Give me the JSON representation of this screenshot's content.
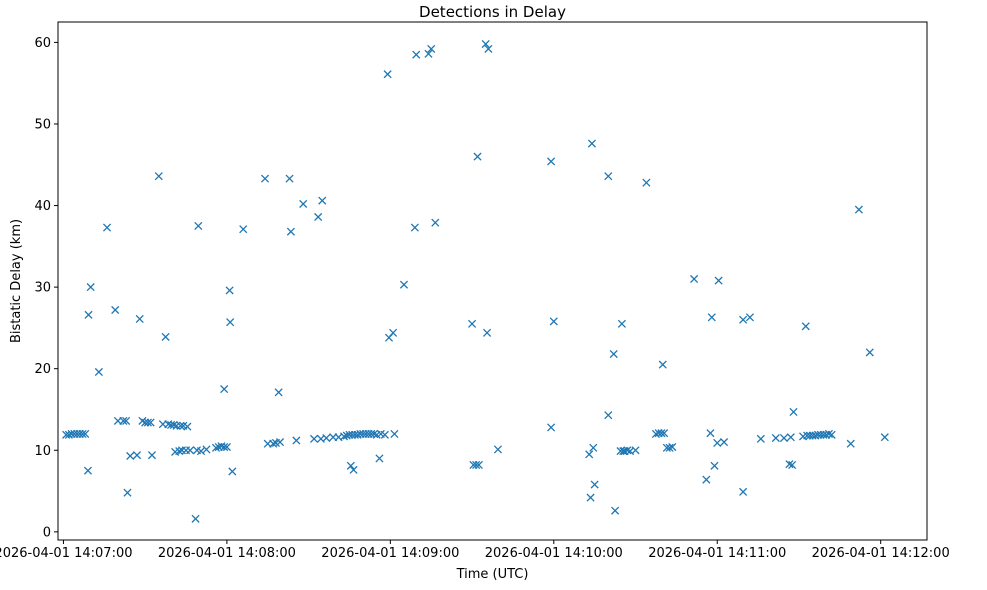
{
  "chart_data": {
    "type": "scatter",
    "title": "Detections in Delay",
    "xlabel": "Time (UTC)",
    "ylabel": "Bistatic Delay (km)",
    "x_unit": "seconds since 2026-04-01 14:07:00",
    "xlim": [
      -2,
      317
    ],
    "ylim": [
      -1,
      62.5
    ],
    "xticks": [
      {
        "value": 0,
        "label": "2026-04-01 14:07:00"
      },
      {
        "value": 60,
        "label": "2026-04-01 14:08:00"
      },
      {
        "value": 120,
        "label": "2026-04-01 14:09:00"
      },
      {
        "value": 180,
        "label": "2026-04-01 14:10:00"
      },
      {
        "value": 240,
        "label": "2026-04-01 14:11:00"
      },
      {
        "value": 300,
        "label": "2026-04-01 14:12:00"
      }
    ],
    "yticks": [
      {
        "value": 0,
        "label": "0"
      },
      {
        "value": 10,
        "label": "10"
      },
      {
        "value": 20,
        "label": "20"
      },
      {
        "value": 30,
        "label": "30"
      },
      {
        "value": 40,
        "label": "40"
      },
      {
        "value": 50,
        "label": "50"
      },
      {
        "value": 60,
        "label": "60"
      }
    ],
    "marker": "x",
    "color": "#1f77b4",
    "series": [
      {
        "name": "Detections",
        "points": [
          [
            1.0,
            11.9
          ],
          [
            2.0,
            11.9
          ],
          [
            3.0,
            12.0
          ],
          [
            4.0,
            12.0
          ],
          [
            5.0,
            12.0
          ],
          [
            6.0,
            12.0
          ],
          [
            7.0,
            12.0
          ],
          [
            8.0,
            12.0
          ],
          [
            9.0,
            7.5
          ],
          [
            9.2,
            26.6
          ],
          [
            10.0,
            30.0
          ],
          [
            13.0,
            19.6
          ],
          [
            16.0,
            37.3
          ],
          [
            19.0,
            27.2
          ],
          [
            20.0,
            13.6
          ],
          [
            22.0,
            13.6
          ],
          [
            23.0,
            13.6
          ],
          [
            23.5,
            4.8
          ],
          [
            24.5,
            9.3
          ],
          [
            27.0,
            9.4
          ],
          [
            28.0,
            26.1
          ],
          [
            29.0,
            13.6
          ],
          [
            30.0,
            13.4
          ],
          [
            31.0,
            13.4
          ],
          [
            32.0,
            13.4
          ],
          [
            32.5,
            9.4
          ],
          [
            35.0,
            43.6
          ],
          [
            36.5,
            13.2
          ],
          [
            37.5,
            23.9
          ],
          [
            38.5,
            13.2
          ],
          [
            39.5,
            13.1
          ],
          [
            40.5,
            13.1
          ],
          [
            41.0,
            9.8
          ],
          [
            41.5,
            13.0
          ],
          [
            42.5,
            9.9
          ],
          [
            43.0,
            13.0
          ],
          [
            43.5,
            10.0
          ],
          [
            44.0,
            13.0
          ],
          [
            45.0,
            10.0
          ],
          [
            45.5,
            12.9
          ],
          [
            46.5,
            10.0
          ],
          [
            48.5,
            1.6
          ],
          [
            49.0,
            10.0
          ],
          [
            49.5,
            37.5
          ],
          [
            50.5,
            9.9
          ],
          [
            52.5,
            10.1
          ],
          [
            56.0,
            10.3
          ],
          [
            57.0,
            10.4
          ],
          [
            58.0,
            10.5
          ],
          [
            59.0,
            10.4
          ],
          [
            59.0,
            17.5
          ],
          [
            60.0,
            10.4
          ],
          [
            61.0,
            29.6
          ],
          [
            61.2,
            25.7
          ],
          [
            62.0,
            7.4
          ],
          [
            66.0,
            37.1
          ],
          [
            74.0,
            43.3
          ],
          [
            75.0,
            10.8
          ],
          [
            77.0,
            10.8
          ],
          [
            78.0,
            10.9
          ],
          [
            79.0,
            17.1
          ],
          [
            79.5,
            11.0
          ],
          [
            83.0,
            43.3
          ],
          [
            83.5,
            36.8
          ],
          [
            85.5,
            11.2
          ],
          [
            88.0,
            40.2
          ],
          [
            92.0,
            11.4
          ],
          [
            93.5,
            38.6
          ],
          [
            94.5,
            11.4
          ],
          [
            95.0,
            40.6
          ],
          [
            96.5,
            11.5
          ],
          [
            99.0,
            11.6
          ],
          [
            101.0,
            11.6
          ],
          [
            103.0,
            11.7
          ],
          [
            104.0,
            11.8
          ],
          [
            105.0,
            11.9
          ],
          [
            105.5,
            8.1
          ],
          [
            106.0,
            11.9
          ],
          [
            106.5,
            7.6
          ],
          [
            107.0,
            11.9
          ],
          [
            108.0,
            11.9
          ],
          [
            109.0,
            12.0
          ],
          [
            110.0,
            12.0
          ],
          [
            111.0,
            12.0
          ],
          [
            112.0,
            12.0
          ],
          [
            113.0,
            12.0
          ],
          [
            114.0,
            12.0
          ],
          [
            115.0,
            11.9
          ],
          [
            116.0,
            9.0
          ],
          [
            116.5,
            12.0
          ],
          [
            118.0,
            11.9
          ],
          [
            119.0,
            56.1
          ],
          [
            119.5,
            23.8
          ],
          [
            121.0,
            24.4
          ],
          [
            121.5,
            12.0
          ],
          [
            125.0,
            30.3
          ],
          [
            129.0,
            37.3
          ],
          [
            129.5,
            58.5
          ],
          [
            134.0,
            58.6
          ],
          [
            135.0,
            59.2
          ],
          [
            136.5,
            37.9
          ],
          [
            150.0,
            25.5
          ],
          [
            150.5,
            8.2
          ],
          [
            151.5,
            8.2
          ],
          [
            152.0,
            46.0
          ],
          [
            152.5,
            8.2
          ],
          [
            155.0,
            59.8
          ],
          [
            155.5,
            24.4
          ],
          [
            156.0,
            59.2
          ],
          [
            159.5,
            10.1
          ],
          [
            179.0,
            45.4
          ],
          [
            179.0,
            12.8
          ],
          [
            180.0,
            25.8
          ],
          [
            193.0,
            9.5
          ],
          [
            193.5,
            4.2
          ],
          [
            194.0,
            47.6
          ],
          [
            194.5,
            10.3
          ],
          [
            195.0,
            5.8
          ],
          [
            200.0,
            43.6
          ],
          [
            200.0,
            14.3
          ],
          [
            202.0,
            21.8
          ],
          [
            202.5,
            2.6
          ],
          [
            204.5,
            9.9
          ],
          [
            205.0,
            25.5
          ],
          [
            205.5,
            9.9
          ],
          [
            206.0,
            9.9
          ],
          [
            207.0,
            10.0
          ],
          [
            208.0,
            9.9
          ],
          [
            210.0,
            10.0
          ],
          [
            214.0,
            42.8
          ],
          [
            217.5,
            12.0
          ],
          [
            218.5,
            12.1
          ],
          [
            219.5,
            12.1
          ],
          [
            220.0,
            20.5
          ],
          [
            220.5,
            12.1
          ],
          [
            221.5,
            10.3
          ],
          [
            222.5,
            10.3
          ],
          [
            223.5,
            10.4
          ],
          [
            231.5,
            31.0
          ],
          [
            236.0,
            6.4
          ],
          [
            237.5,
            12.1
          ],
          [
            238.0,
            26.3
          ],
          [
            239.0,
            8.1
          ],
          [
            240.0,
            10.9
          ],
          [
            240.5,
            30.8
          ],
          [
            242.5,
            11.0
          ],
          [
            249.5,
            26.0
          ],
          [
            249.5,
            4.9
          ],
          [
            252.0,
            26.3
          ],
          [
            256.0,
            11.4
          ],
          [
            261.5,
            11.5
          ],
          [
            264.5,
            11.5
          ],
          [
            266.5,
            8.3
          ],
          [
            267.0,
            11.6
          ],
          [
            267.5,
            8.2
          ],
          [
            268.0,
            14.7
          ],
          [
            271.5,
            11.7
          ],
          [
            272.5,
            25.2
          ],
          [
            273.0,
            11.8
          ],
          [
            274.0,
            11.8
          ],
          [
            275.0,
            11.8
          ],
          [
            276.0,
            11.8
          ],
          [
            277.0,
            11.9
          ],
          [
            278.0,
            11.9
          ],
          [
            279.0,
            11.9
          ],
          [
            280.0,
            11.9
          ],
          [
            281.0,
            12.0
          ],
          [
            282.0,
            11.9
          ],
          [
            289.0,
            10.8
          ],
          [
            292.0,
            39.5
          ],
          [
            296.0,
            22.0
          ],
          [
            301.5,
            11.6
          ]
        ]
      }
    ]
  }
}
